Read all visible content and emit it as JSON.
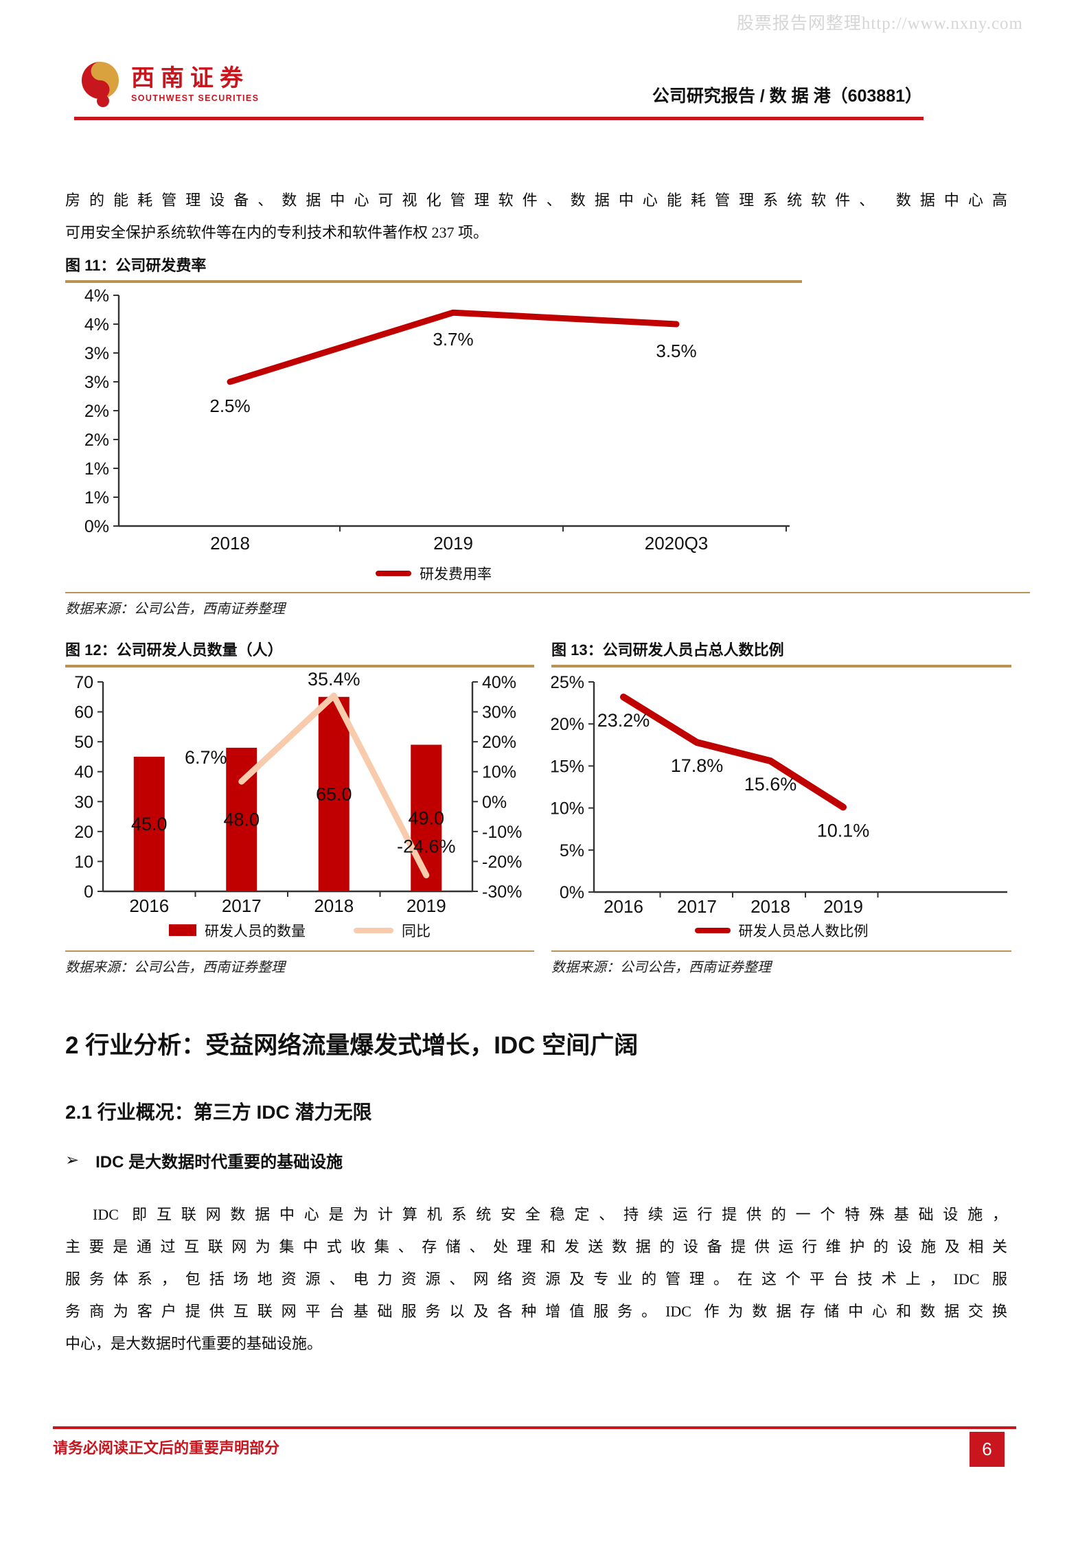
{
  "watermark": "股票报告网整理http://www.nxny.com",
  "header": {
    "logo_cn": "西南证券",
    "logo_en": "SOUTHWEST SECURITIES",
    "title": "公司研究报告 / 数 据 港（603881）"
  },
  "paragraph1_lines": [
    "房的能耗管理设备、数据中心可视化管理软件、数据中心能耗管理系统软件、 数据中心高",
    "可用安全保护系统软件等在内的专利技术和软件著作权 237 项。"
  ],
  "figures": {
    "fig11": {
      "title": "图 11：公司研发费率",
      "legend_label": "研发费用率",
      "source": "数据来源：公司公告，西南证券整理"
    },
    "fig12": {
      "title": "图 12：公司研发人员数量（人）",
      "legend_bar": "研发人员的数量",
      "legend_line": "同比",
      "source": "数据来源：公司公告，西南证券整理"
    },
    "fig13": {
      "title": "图 13：公司研发人员占总人数比例",
      "legend_label": "研发人员总人数比例",
      "source": "数据来源：公司公告，西南证券整理"
    }
  },
  "section": {
    "h2": "2 行业分析：受益网络流量爆发式增长，IDC 空间广阔",
    "h2_1": "2.1 行业概况：第三方 IDC 潜力无限",
    "bullet_marker": "➢",
    "bullet": "IDC 是大数据时代重要的基础设施",
    "paragraph_lines": [
      "IDC 即互联网数据中心是为计算机系统安全稳定、持续运行提供的一个特殊基础设施，",
      "主要是通过互联网为集中式收集、存储、处理和发送数据的设备提供运行维护的设施及相关",
      "服务体系，包括场地资源、电力资源、网络资源及专业的管理。在这个平台技术上，IDC 服",
      "务商为客户提供互联网平台基础服务以及各种增值服务。IDC 作为数据存储中心和数据交换",
      "中心，是大数据时代重要的基础设施。"
    ]
  },
  "footer": {
    "disclaimer": "请务必阅读正文后的重要声明部分",
    "page_number": "6"
  },
  "colors": {
    "accent_red": "#C00000",
    "brand_red": "#C9151E",
    "gold": "#BA9254",
    "peach": "#F7CBAC",
    "watermark_gray": "#D6D6D6"
  },
  "chart_data": [
    {
      "id": "fig11",
      "type": "line",
      "title": "图 11：公司研发费率",
      "categories": [
        "2018",
        "2019",
        "2020Q3"
      ],
      "series": [
        {
          "name": "研发费用率",
          "values": [
            2.5,
            3.7,
            3.5
          ]
        }
      ],
      "data_labels": [
        "2.5%",
        "3.7%",
        "3.5%"
      ],
      "ylim": [
        0,
        4
      ],
      "ytick_step": 0.5,
      "ytick_labels": [
        "4%",
        "4%",
        "3%",
        "3%",
        "2%",
        "2%",
        "1%",
        "1%",
        "0%"
      ],
      "grid": false,
      "legend_position": "bottom"
    },
    {
      "id": "fig12",
      "type": "bar+line",
      "title": "图 12：公司研发人员数量（人）",
      "categories": [
        "2016",
        "2017",
        "2018",
        "2019"
      ],
      "bar_series": {
        "name": "研发人员的数量",
        "values": [
          45.0,
          48.0,
          65.0,
          49.0
        ],
        "labels": [
          "45.0",
          "48.0",
          "65.0",
          "49.0"
        ]
      },
      "line_series": {
        "name": "同比",
        "values": [
          null,
          6.7,
          35.4,
          -24.6
        ],
        "labels": [
          null,
          "6.7%",
          "35.4%",
          "-24.6%"
        ]
      },
      "left_ylim": [
        0,
        70
      ],
      "left_tick_labels": [
        "70",
        "60",
        "50",
        "40",
        "30",
        "20",
        "10",
        "0"
      ],
      "right_ylim": [
        -30,
        40
      ],
      "right_tick_labels": [
        "40%",
        "30%",
        "20%",
        "10%",
        "0%",
        "-10%",
        "-20%",
        "-30%"
      ],
      "grid": false,
      "legend_position": "bottom"
    },
    {
      "id": "fig13",
      "type": "line",
      "title": "图 13：公司研发人员占总人数比例",
      "categories": [
        "2016",
        "2017",
        "2018",
        "2019"
      ],
      "series": [
        {
          "name": "研发人员总人数比例",
          "values": [
            23.2,
            17.8,
            15.6,
            10.1
          ]
        }
      ],
      "data_labels": [
        "23.2%",
        "17.8%",
        "15.6%",
        "10.1%"
      ],
      "ylim": [
        0,
        25
      ],
      "ytick_step": 5,
      "ytick_labels": [
        "25%",
        "20%",
        "15%",
        "10%",
        "5%",
        "0%"
      ],
      "grid": false,
      "legend_position": "bottom"
    }
  ]
}
